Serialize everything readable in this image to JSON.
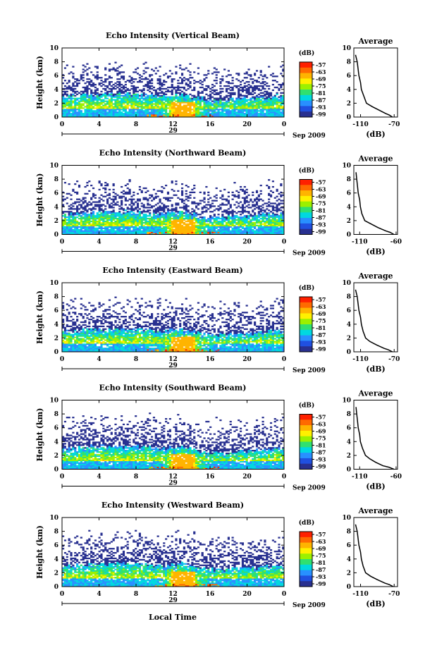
{
  "figure": {
    "xlabel": "Local Time",
    "date_label": "Sep 2009",
    "day_label": "29",
    "cbar_unit": "(dB)",
    "cbar_ticks": [
      "-57",
      "-63",
      "-69",
      "-75",
      "-81",
      "-87",
      "-93",
      "-99"
    ],
    "cbar_colors": [
      "#ff2000",
      "#ff6a00",
      "#ffb400",
      "#fff000",
      "#9cf000",
      "#30e070",
      "#00d8e0",
      "#2890ff",
      "#2050e0",
      "#283090"
    ]
  },
  "chart_data": [
    {
      "type": "heatmap",
      "title": "Echo Intensity (Vertical Beam)",
      "ylabel": "Height (km)",
      "x_ticks": [
        "0",
        "4",
        "8",
        "12",
        "16",
        "20",
        "0"
      ],
      "y_ticks": [
        "0",
        "2",
        "4",
        "6",
        "8",
        "10"
      ],
      "xlim": [
        0,
        24
      ],
      "ylim": [
        0,
        10
      ],
      "colorbar": {
        "unit": "(dB)",
        "range": [
          -99,
          -57
        ]
      },
      "profile": {
        "title": "Average",
        "xlabel": "(dB)",
        "x_ticks": [
          "-110",
          "-70"
        ],
        "xlim": [
          -118,
          -66
        ],
        "y_ticks": [
          "0",
          "2",
          "4",
          "6",
          "8",
          "10"
        ],
        "heights": [
          0.0,
          0.3,
          0.5,
          1.0,
          1.5,
          2.0,
          3.0,
          4.0,
          5.0,
          6.0,
          7.0,
          8.0,
          9.0
        ],
        "values": [
          -72,
          -76,
          -80,
          -88,
          -96,
          -103,
          -106,
          -109,
          -110,
          -112,
          -113,
          -114,
          -116
        ]
      }
    },
    {
      "type": "heatmap",
      "title": "Echo Intensity (Northward Beam)",
      "ylabel": "Height (km)",
      "x_ticks": [
        "0",
        "4",
        "8",
        "12",
        "16",
        "20",
        "0"
      ],
      "y_ticks": [
        "0",
        "2",
        "4",
        "6",
        "8",
        "10"
      ],
      "xlim": [
        0,
        24
      ],
      "ylim": [
        0,
        10
      ],
      "colorbar": {
        "unit": "(dB)",
        "range": [
          -99,
          -57
        ]
      },
      "profile": {
        "title": "Average",
        "xlabel": "(dB)",
        "x_ticks": [
          "-110",
          "-60"
        ],
        "xlim": [
          -118,
          -58
        ],
        "y_ticks": [
          "0",
          "2",
          "4",
          "6",
          "8",
          "10"
        ],
        "heights": [
          0.0,
          0.3,
          0.5,
          1.0,
          1.5,
          2.0,
          3.0,
          4.0,
          5.0,
          6.0,
          7.0,
          8.0,
          9.0
        ],
        "values": [
          -63,
          -68,
          -74,
          -85,
          -94,
          -103,
          -107,
          -109,
          -110,
          -112,
          -113,
          -114,
          -115
        ]
      }
    },
    {
      "type": "heatmap",
      "title": "Echo Intensity (Eastward Beam)",
      "ylabel": "Height (km)",
      "x_ticks": [
        "0",
        "4",
        "8",
        "12",
        "16",
        "20",
        "0"
      ],
      "y_ticks": [
        "0",
        "2",
        "4",
        "6",
        "8",
        "10"
      ],
      "xlim": [
        0,
        24
      ],
      "ylim": [
        0,
        10
      ],
      "colorbar": {
        "unit": "(dB)",
        "range": [
          -99,
          -57
        ]
      },
      "profile": {
        "title": "Average",
        "xlabel": "(dB)",
        "x_ticks": [
          "-110",
          "-70"
        ],
        "xlim": [
          -118,
          -66
        ],
        "y_ticks": [
          "0",
          "2",
          "4",
          "6",
          "8",
          "10"
        ],
        "heights": [
          0.0,
          0.3,
          0.5,
          1.0,
          1.5,
          2.0,
          3.0,
          4.0,
          5.0,
          6.0,
          7.0,
          8.0,
          9.0
        ],
        "values": [
          -72,
          -77,
          -82,
          -91,
          -99,
          -104,
          -107,
          -109,
          -110,
          -112,
          -113,
          -114,
          -116
        ]
      }
    },
    {
      "type": "heatmap",
      "title": "Echo Intensity (Southward Beam)",
      "ylabel": "Height (km)",
      "x_ticks": [
        "0",
        "4",
        "8",
        "12",
        "16",
        "20",
        "0"
      ],
      "y_ticks": [
        "0",
        "2",
        "4",
        "6",
        "8",
        "10"
      ],
      "xlim": [
        0,
        24
      ],
      "ylim": [
        0,
        10
      ],
      "colorbar": {
        "unit": "(dB)",
        "range": [
          -99,
          -57
        ]
      },
      "profile": {
        "title": "Average",
        "xlabel": "(dB)",
        "x_ticks": [
          "-110",
          "-60"
        ],
        "xlim": [
          -118,
          -58
        ],
        "y_ticks": [
          "0",
          "2",
          "4",
          "6",
          "8",
          "10"
        ],
        "heights": [
          0.0,
          0.3,
          0.5,
          1.0,
          1.5,
          2.0,
          3.0,
          4.0,
          5.0,
          6.0,
          7.0,
          8.0,
          9.0
        ],
        "values": [
          -63,
          -70,
          -78,
          -88,
          -96,
          -102,
          -106,
          -109,
          -110,
          -112,
          -113,
          -114,
          -115
        ]
      }
    },
    {
      "type": "heatmap",
      "title": "Echo Intensity (Westward Beam)",
      "ylabel": "Height (km)",
      "x_ticks": [
        "0",
        "4",
        "8",
        "12",
        "16",
        "20",
        "0"
      ],
      "y_ticks": [
        "0",
        "2",
        "4",
        "6",
        "8",
        "10"
      ],
      "xlim": [
        0,
        24
      ],
      "ylim": [
        0,
        10
      ],
      "colorbar": {
        "unit": "(dB)",
        "range": [
          -99,
          -57
        ]
      },
      "profile": {
        "title": "Average",
        "xlabel": "(dB)",
        "x_ticks": [
          "-110",
          "-70"
        ],
        "xlim": [
          -118,
          -66
        ],
        "y_ticks": [
          "0",
          "2",
          "4",
          "6",
          "8",
          "10"
        ],
        "heights": [
          0.0,
          0.3,
          0.5,
          1.0,
          1.5,
          2.0,
          3.0,
          4.0,
          5.0,
          6.0,
          7.0,
          8.0,
          9.0
        ],
        "values": [
          -71,
          -76,
          -81,
          -90,
          -98,
          -104,
          -107,
          -109,
          -110,
          -112,
          -113,
          -114,
          -116
        ]
      }
    }
  ]
}
